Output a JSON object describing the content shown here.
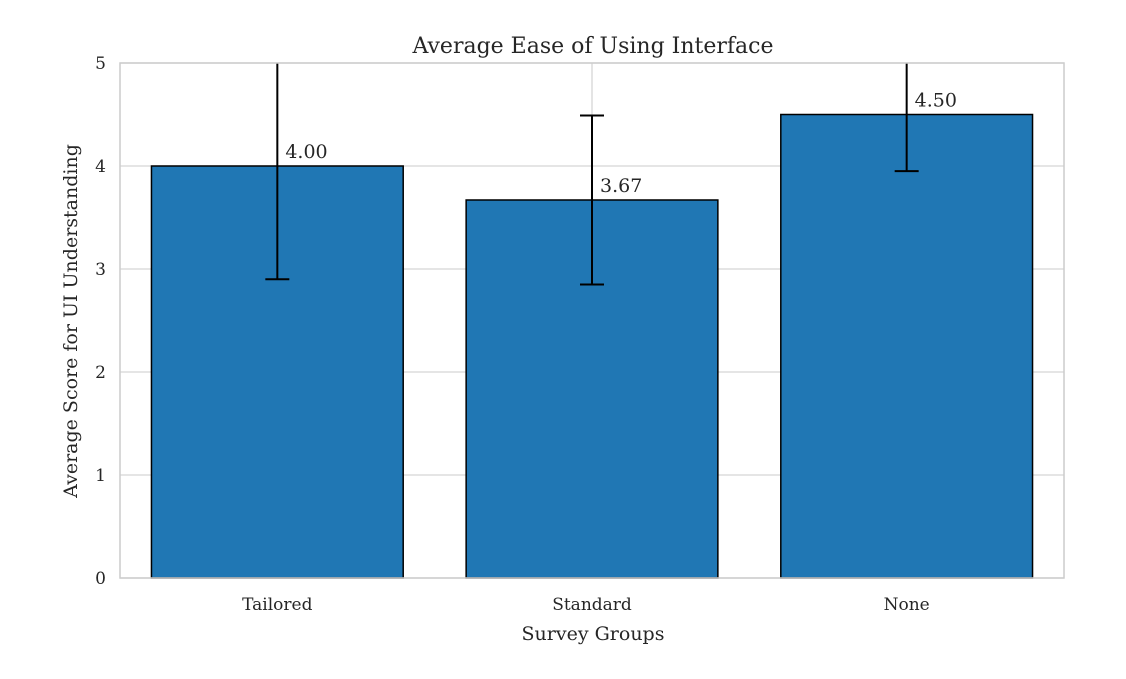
{
  "chart_data": {
    "type": "bar",
    "title": "Average Ease of Using Interface",
    "xlabel": "Survey Groups",
    "ylabel": "Average Score for UI Understanding",
    "categories": [
      "Tailored",
      "Standard",
      "None"
    ],
    "values": [
      4.0,
      3.67,
      4.5
    ],
    "value_labels": [
      "4.00",
      "3.67",
      "4.50"
    ],
    "error_bars": [
      {
        "low": 2.9,
        "high": 5.1
      },
      {
        "low": 2.85,
        "high": 4.49
      },
      {
        "low": 3.95,
        "high": 5.05
      }
    ],
    "ylim": [
      0,
      5
    ],
    "yticks": [
      "0",
      "1",
      "2",
      "3",
      "4",
      "5"
    ],
    "grid": true,
    "colors": {
      "bar_fill": "#2077b4",
      "bar_edge": "#000000",
      "grid": "#d5d5d5",
      "frame": "#cccccc",
      "error_bar": "#000000"
    }
  }
}
